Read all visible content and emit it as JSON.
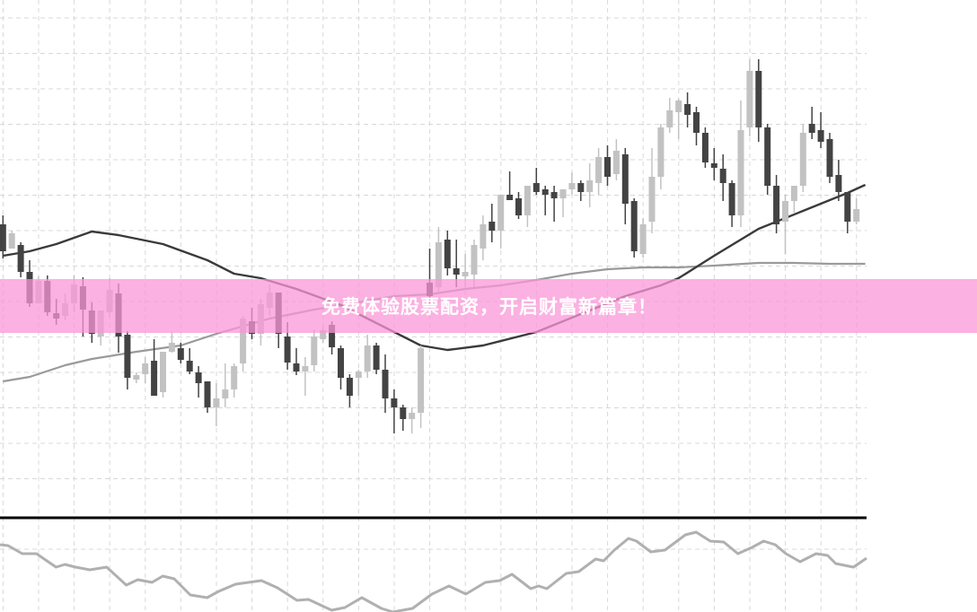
{
  "banner": {
    "text": "免费体验股票配资，开启财富新篇章！"
  },
  "colors": {
    "bullish": "#c2c2c2",
    "bearish": "#434343",
    "ma_fast": "#3a3a3a",
    "ma_slow": "#9a9a9a",
    "oscillator": "#b0b0b0",
    "banner": "#fa96d6",
    "grid": "#d8d8d8",
    "separator": "#000000"
  },
  "chart_data": {
    "type": "candlestick",
    "title": "",
    "grid": true,
    "price_panel": {
      "candles_ohlc": [
        [
          35.0,
          36.0,
          31.2,
          32.0
        ],
        [
          32.3,
          34.3,
          32.3,
          34.0
        ],
        [
          32.7,
          33.0,
          29.1,
          29.7
        ],
        [
          29.7,
          31.0,
          25.8,
          26.2
        ],
        [
          26.2,
          29.2,
          26.2,
          28.7
        ],
        [
          28.7,
          29.3,
          24.8,
          25.2
        ],
        [
          25.1,
          26.7,
          23.8,
          24.5
        ],
        [
          24.8,
          27.3,
          24.3,
          26.2
        ],
        [
          26.2,
          29.3,
          25.2,
          28.3
        ],
        [
          28.1,
          29.1,
          22.5,
          25.5
        ],
        [
          25.4,
          26.3,
          21.8,
          22.8
        ],
        [
          22.5,
          25.4,
          21.5,
          25.4
        ],
        [
          25.2,
          29.0,
          24.7,
          27.7
        ],
        [
          27.3,
          28.4,
          20.7,
          22.5
        ],
        [
          22.7,
          23.1,
          16.6,
          17.9
        ],
        [
          17.7,
          18.5,
          17.3,
          18.2
        ],
        [
          18.3,
          20.2,
          17.3,
          19.5
        ],
        [
          19.8,
          22.2,
          15.9,
          15.9
        ],
        [
          16.3,
          20.8,
          15.7,
          20.8
        ],
        [
          20.8,
          23.0,
          20.7,
          21.8
        ],
        [
          21.2,
          21.8,
          19.5,
          19.9
        ],
        [
          19.8,
          21.2,
          18.3,
          18.6
        ],
        [
          18.5,
          19.2,
          15.7,
          17.3
        ],
        [
          17.5,
          17.5,
          14.0,
          14.6
        ],
        [
          14.6,
          17.3,
          12.5,
          15.6
        ],
        [
          15.6,
          19.5,
          14.6,
          16.6
        ],
        [
          16.6,
          19.5,
          15.7,
          19.2
        ],
        [
          19.5,
          24.8,
          18.6,
          24.5
        ],
        [
          24.2,
          25.7,
          22.2,
          22.8
        ],
        [
          22.8,
          26.7,
          21.5,
          26.1
        ],
        [
          25.7,
          28.3,
          24.8,
          27.4
        ],
        [
          27.4,
          27.4,
          21.2,
          22.8
        ],
        [
          22.5,
          24.1,
          18.8,
          19.6
        ],
        [
          19.5,
          21.2,
          18.2,
          18.6
        ],
        [
          18.6,
          20.2,
          15.9,
          19.2
        ],
        [
          19.3,
          23.3,
          18.6,
          22.5
        ],
        [
          22.2,
          23.7,
          21.8,
          23.2
        ],
        [
          23.8,
          24.2,
          20.5,
          21.3
        ],
        [
          21.2,
          21.5,
          16.6,
          17.9
        ],
        [
          17.9,
          18.3,
          14.6,
          15.9
        ],
        [
          17.9,
          18.8,
          15.9,
          18.6
        ],
        [
          18.6,
          22.7,
          17.9,
          21.5
        ],
        [
          21.5,
          21.8,
          18.3,
          18.8
        ],
        [
          18.8,
          20.5,
          14.0,
          15.6
        ],
        [
          15.6,
          16.6,
          11.7,
          14.6
        ],
        [
          14.6,
          14.9,
          12.0,
          13.3
        ],
        [
          13.3,
          14.6,
          11.7,
          14.0
        ],
        [
          14.0,
          21.5,
          12.3,
          21.2
        ],
        [
          28.5,
          32.3,
          25.5,
          27.0
        ],
        [
          28.0,
          34.7,
          27.5,
          33.0
        ],
        [
          33.3,
          34.3,
          29.3,
          30.1
        ],
        [
          30.1,
          33.3,
          28.0,
          29.4
        ],
        [
          29.2,
          31.7,
          28.0,
          29.7
        ],
        [
          29.4,
          33.3,
          28.0,
          32.7
        ],
        [
          32.3,
          36.0,
          31.0,
          35.0
        ],
        [
          35.3,
          37.3,
          33.0,
          34.3
        ],
        [
          34.3,
          38.3,
          32.3,
          38.3
        ],
        [
          38.3,
          40.9,
          37.7,
          37.7
        ],
        [
          37.9,
          38.6,
          35.6,
          36.0
        ],
        [
          36.0,
          39.3,
          34.7,
          39.3
        ],
        [
          39.6,
          41.3,
          38.3,
          38.6
        ],
        [
          38.9,
          39.3,
          36.0,
          38.3
        ],
        [
          38.6,
          39.3,
          35.3,
          37.9
        ],
        [
          37.9,
          38.9,
          35.8,
          38.9
        ],
        [
          38.9,
          40.8,
          38.3,
          39.6
        ],
        [
          39.6,
          39.9,
          37.6,
          38.6
        ],
        [
          38.6,
          41.8,
          36.9,
          39.9
        ],
        [
          39.6,
          43.5,
          38.3,
          42.5
        ],
        [
          42.5,
          43.8,
          39.3,
          40.3
        ],
        [
          40.6,
          44.5,
          39.9,
          43.2
        ],
        [
          42.8,
          43.5,
          35.0,
          37.3
        ],
        [
          37.6,
          37.9,
          31.3,
          32.0
        ],
        [
          31.7,
          35.7,
          31.3,
          35.0
        ],
        [
          35.3,
          43.5,
          34.0,
          40.3
        ],
        [
          40.3,
          46.2,
          38.9,
          45.8
        ],
        [
          45.8,
          49.1,
          45.2,
          47.7
        ],
        [
          47.5,
          49.0,
          44.5,
          48.8
        ],
        [
          48.4,
          49.7,
          45.8,
          47.2
        ],
        [
          47.5,
          48.1,
          43.8,
          45.2
        ],
        [
          45.2,
          45.8,
          41.3,
          41.9
        ],
        [
          41.8,
          43.5,
          39.9,
          41.3
        ],
        [
          41.2,
          42.8,
          37.6,
          39.6
        ],
        [
          39.6,
          39.9,
          34.7,
          36.0
        ],
        [
          36.0,
          48.8,
          34.7,
          45.5
        ],
        [
          45.8,
          53.4,
          44.8,
          52.1
        ],
        [
          52.1,
          53.4,
          44.2,
          45.8
        ],
        [
          45.8,
          46.2,
          38.3,
          39.3
        ],
        [
          39.3,
          40.5,
          34.0,
          35.0
        ],
        [
          35.3,
          38.3,
          31.7,
          37.6
        ],
        [
          37.6,
          39.3,
          36.3,
          39.3
        ],
        [
          39.3,
          46.2,
          38.6,
          45.2
        ],
        [
          46.2,
          48.1,
          44.5,
          45.2
        ],
        [
          45.5,
          47.5,
          43.5,
          44.2
        ],
        [
          44.5,
          45.2,
          39.6,
          40.3
        ],
        [
          40.5,
          42.2,
          37.6,
          38.6
        ],
        [
          38.6,
          38.6,
          34.0,
          35.3
        ],
        [
          35.3,
          37.9,
          35.0,
          36.7
        ]
      ],
      "ma_fast": [
        [
          0,
          31.5
        ],
        [
          3,
          32.0
        ],
        [
          6,
          32.8
        ],
        [
          10,
          34.2
        ],
        [
          13,
          33.8
        ],
        [
          18,
          32.8
        ],
        [
          23,
          31.0
        ],
        [
          26,
          29.5
        ],
        [
          29,
          29.0
        ],
        [
          33,
          27.8
        ],
        [
          38,
          26.0
        ],
        [
          43,
          23.5
        ],
        [
          47,
          21.5
        ],
        [
          50,
          21.0
        ],
        [
          54,
          21.5
        ],
        [
          60,
          23.0
        ],
        [
          65,
          25.0
        ],
        [
          70,
          27.0
        ],
        [
          74,
          28.2
        ],
        [
          76,
          29.0
        ],
        [
          80,
          31.5
        ],
        [
          85,
          34.5
        ],
        [
          90,
          36.5
        ],
        [
          95,
          38.5
        ],
        [
          97,
          39.4
        ]
      ],
      "ma_slow": [
        [
          0,
          17.5
        ],
        [
          3,
          18.0
        ],
        [
          7,
          19.3
        ],
        [
          10,
          20.0
        ],
        [
          15,
          20.8
        ],
        [
          20,
          21.5
        ],
        [
          24,
          22.8
        ],
        [
          30,
          24.5
        ],
        [
          35,
          25.5
        ],
        [
          40,
          26.3
        ],
        [
          44,
          27.0
        ],
        [
          48,
          27.2
        ],
        [
          52,
          27.8
        ],
        [
          56,
          28.2
        ],
        [
          60,
          28.8
        ],
        [
          64,
          29.5
        ],
        [
          68,
          30.0
        ],
        [
          72,
          30.2
        ],
        [
          76,
          30.2
        ],
        [
          80,
          30.4
        ],
        [
          85,
          30.7
        ],
        [
          89,
          30.7
        ],
        [
          93,
          30.6
        ],
        [
          97,
          30.6
        ]
      ]
    },
    "oscillator_panel": {
      "values": [
        [
          0,
          7.5
        ],
        [
          0.9,
          7.4
        ],
        [
          2.5,
          6.5
        ],
        [
          4.1,
          6.5
        ],
        [
          6.3,
          5.0
        ],
        [
          7.3,
          5.3
        ],
        [
          8.5,
          5.0
        ],
        [
          10.1,
          4.7
        ],
        [
          12.0,
          5.0
        ],
        [
          14.2,
          3.0
        ],
        [
          15.5,
          3.6
        ],
        [
          17.1,
          3.3
        ],
        [
          18.3,
          4.0
        ],
        [
          19.6,
          3.7
        ],
        [
          21.4,
          1.9
        ],
        [
          23.3,
          1.6
        ],
        [
          24.6,
          2.3
        ],
        [
          26.5,
          3.1
        ],
        [
          29.4,
          3.5
        ],
        [
          31.2,
          2.7
        ],
        [
          33.4,
          1.3
        ],
        [
          34.7,
          1.4
        ],
        [
          37.3,
          0.2
        ],
        [
          38.8,
          0.5
        ],
        [
          40.7,
          1.6
        ],
        [
          42.9,
          0.4
        ],
        [
          44.2,
          0.0
        ],
        [
          46.4,
          0.4
        ],
        [
          48.6,
          2.0
        ],
        [
          50.5,
          2.9
        ],
        [
          52.4,
          2.0
        ],
        [
          54.6,
          3.3
        ],
        [
          56.2,
          3.5
        ],
        [
          57.6,
          4.2
        ],
        [
          59.7,
          2.6
        ],
        [
          60.6,
          2.9
        ],
        [
          61.5,
          2.6
        ],
        [
          63.7,
          4.3
        ],
        [
          65.1,
          4.5
        ],
        [
          67.0,
          5.9
        ],
        [
          67.9,
          5.7
        ],
        [
          69.1,
          6.9
        ],
        [
          70.7,
          8.2
        ],
        [
          71.6,
          7.9
        ],
        [
          73.2,
          6.7
        ],
        [
          74.8,
          6.9
        ],
        [
          77.1,
          8.6
        ],
        [
          78.3,
          8.9
        ],
        [
          79.9,
          7.9
        ],
        [
          81.4,
          7.8
        ],
        [
          83.0,
          6.5
        ],
        [
          84.6,
          7.2
        ],
        [
          85.9,
          7.9
        ],
        [
          87.2,
          7.5
        ],
        [
          88.4,
          6.5
        ],
        [
          90.0,
          5.6
        ],
        [
          91.8,
          6.5
        ],
        [
          93.1,
          6.3
        ],
        [
          94.0,
          5.4
        ],
        [
          96.0,
          5.0
        ],
        [
          97.5,
          6.0
        ]
      ]
    }
  }
}
